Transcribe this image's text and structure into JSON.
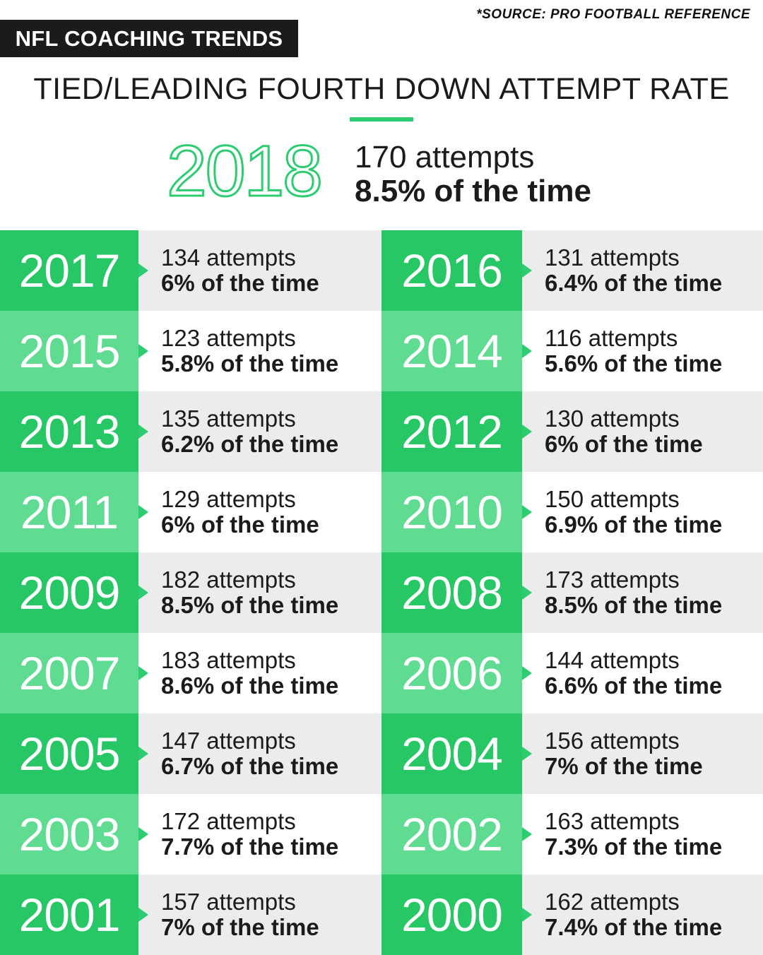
{
  "source": "*SOURCE: PRO FOOTBALL REFERENCE",
  "badge": "NFL COACHING TRENDS",
  "subtitle": "TIED/LEADING FOURTH DOWN ATTEMPT RATE",
  "hero": {
    "year": "2018",
    "attempts": "170 attempts",
    "rate": "8.5% of the time"
  },
  "colors": {
    "accent": "#2ecc71",
    "dark_green": "#27c766",
    "light_green": "#5fdc92",
    "dark": "#1b1b1b",
    "grey": "#ececec"
  },
  "chart_data": {
    "type": "table",
    "title": "TIED/LEADING FOURTH DOWN ATTEMPT RATE",
    "rows": [
      {
        "year": "2017",
        "attempts": "134 attempts",
        "rate": "6% of the time"
      },
      {
        "year": "2016",
        "attempts": "131 attempts",
        "rate": "6.4% of the time"
      },
      {
        "year": "2015",
        "attempts": "123 attempts",
        "rate": "5.8% of the time"
      },
      {
        "year": "2014",
        "attempts": "116 attempts",
        "rate": "5.6% of the time"
      },
      {
        "year": "2013",
        "attempts": "135 attempts",
        "rate": "6.2% of the time"
      },
      {
        "year": "2012",
        "attempts": "130 attempts",
        "rate": "6% of the time"
      },
      {
        "year": "2011",
        "attempts": "129 attempts",
        "rate": "6% of the time"
      },
      {
        "year": "2010",
        "attempts": "150 attempts",
        "rate": "6.9% of the time"
      },
      {
        "year": "2009",
        "attempts": "182 attempts",
        "rate": "8.5% of the time"
      },
      {
        "year": "2008",
        "attempts": "173 attempts",
        "rate": "8.5% of the time"
      },
      {
        "year": "2007",
        "attempts": "183 attempts",
        "rate": "8.6% of the time"
      },
      {
        "year": "2006",
        "attempts": "144 attempts",
        "rate": "6.6% of the time"
      },
      {
        "year": "2005",
        "attempts": "147 attempts",
        "rate": "6.7% of the time"
      },
      {
        "year": "2004",
        "attempts": "156 attempts",
        "rate": "7% of the time"
      },
      {
        "year": "2003",
        "attempts": "172 attempts",
        "rate": "7.7% of the time"
      },
      {
        "year": "2002",
        "attempts": "163 attempts",
        "rate": "7.3% of the time"
      },
      {
        "year": "2001",
        "attempts": "157 attempts",
        "rate": "7% of the time"
      },
      {
        "year": "2000",
        "attempts": "162 attempts",
        "rate": "7.4% of the time"
      }
    ]
  }
}
